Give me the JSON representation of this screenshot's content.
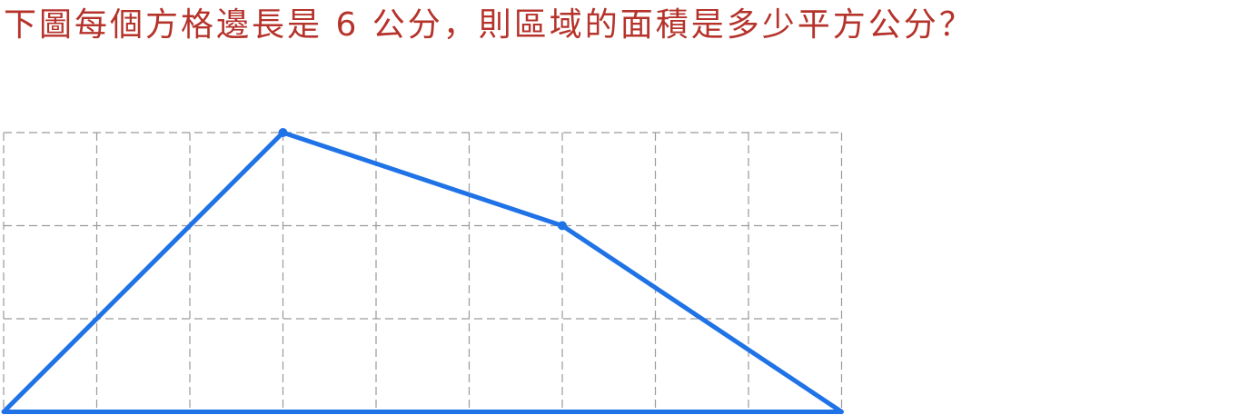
{
  "question": {
    "text": "下圖每個方格邊長是 6 公分，則區域的面積是多少平方公分？",
    "color": "#b5332b"
  },
  "grid": {
    "columns": 9,
    "rows": 3,
    "line_style": "dashed",
    "line_color": "#9a9a9a"
  },
  "polygon": {
    "stroke_color": "#1f73e6",
    "vertices": [
      {
        "col": 0,
        "row": 3
      },
      {
        "col": 3,
        "row": 0
      },
      {
        "col": 6,
        "row": 1
      },
      {
        "col": 9,
        "row": 3
      }
    ],
    "marked_vertices": [
      1,
      2
    ]
  }
}
